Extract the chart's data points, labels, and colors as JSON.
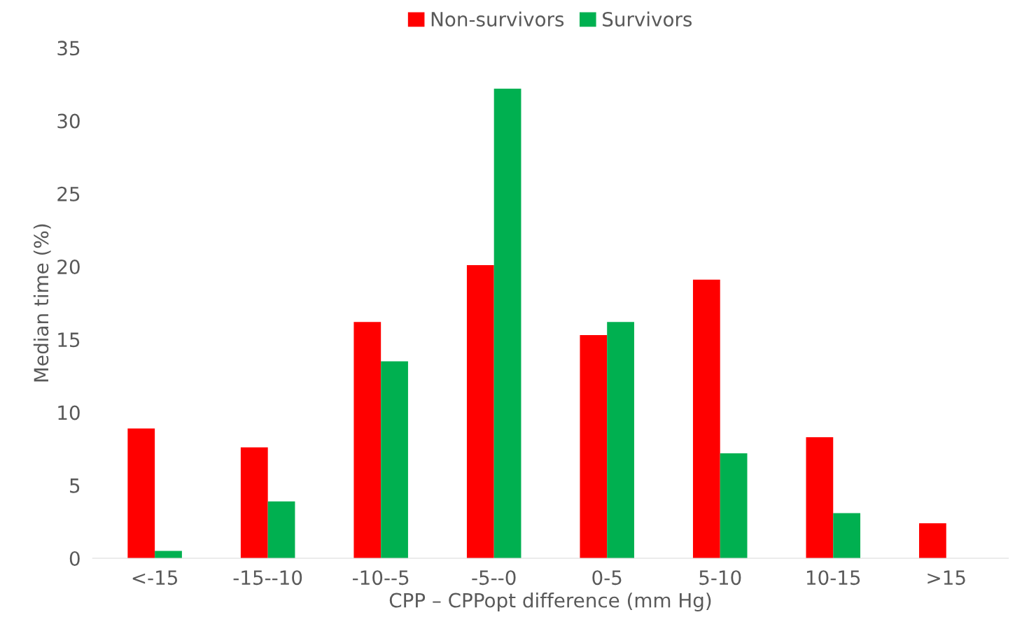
{
  "chart_data": {
    "type": "bar",
    "xlabel": "CPP – CPPopt difference (mm Hg)",
    "ylabel": "Median time (%)",
    "categories": [
      "<-15",
      "-15--10",
      "-10--5",
      "-5--0",
      "0-5",
      "5-10",
      "10-15",
      ">15"
    ],
    "series": [
      {
        "name": "Non-survivors",
        "color": "#ff0000",
        "values": [
          8.9,
          7.6,
          16.2,
          20.1,
          15.3,
          19.1,
          8.3,
          2.4
        ]
      },
      {
        "name": "Survivors",
        "color": "#00b050",
        "values": [
          0.5,
          3.9,
          13.5,
          32.2,
          16.2,
          7.2,
          3.1,
          0
        ]
      }
    ],
    "ylim": [
      0,
      35
    ],
    "yticks": [
      0,
      5,
      10,
      15,
      20,
      25,
      30,
      35
    ],
    "grid": false,
    "legend": "top"
  }
}
